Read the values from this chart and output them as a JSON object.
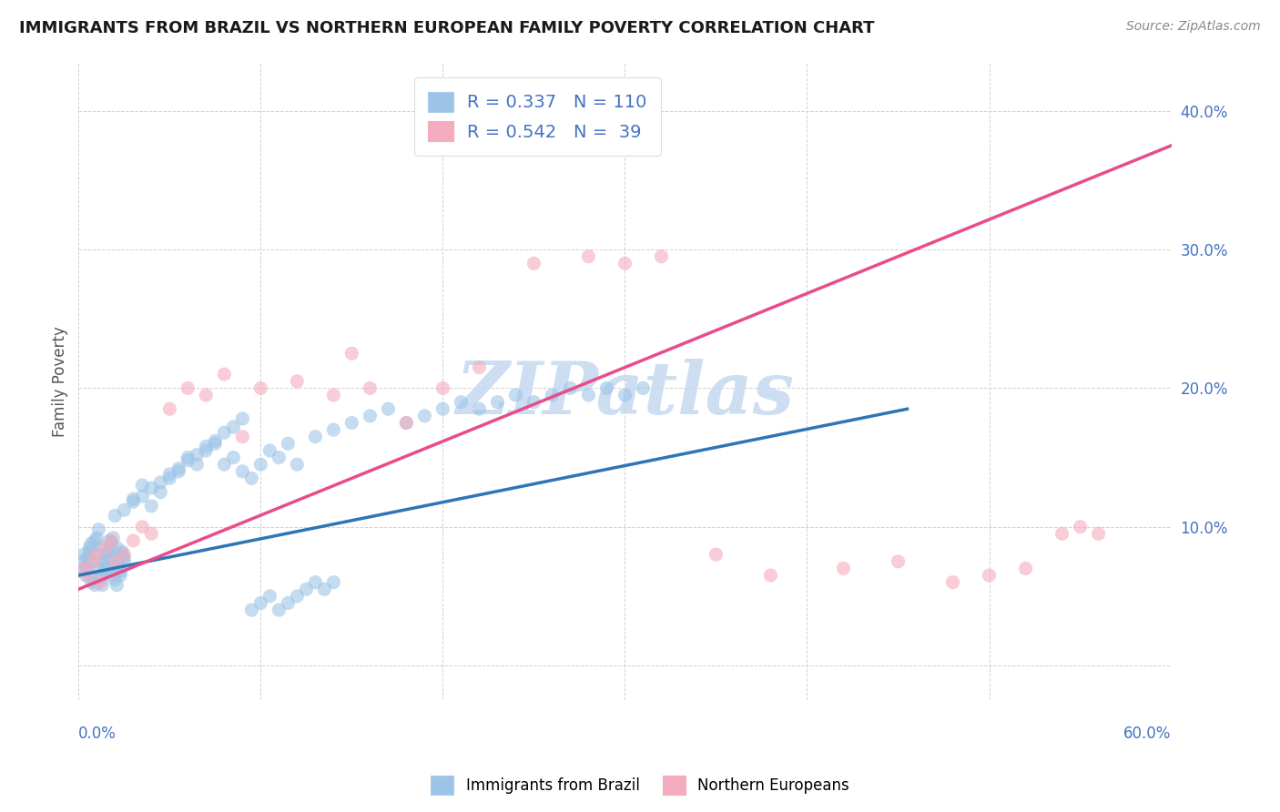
{
  "title": "IMMIGRANTS FROM BRAZIL VS NORTHERN EUROPEAN FAMILY POVERTY CORRELATION CHART",
  "source": "Source: ZipAtlas.com",
  "ylabel": "Family Poverty",
  "xlim": [
    0.0,
    0.6
  ],
  "ylim": [
    -0.025,
    0.435
  ],
  "r_brazil": 0.337,
  "n_brazil": 110,
  "r_northern": 0.542,
  "n_northern": 39,
  "color_brazil": "#9DC3E6",
  "color_northern": "#F4ACBE",
  "color_brazil_line": "#2E75B6",
  "color_northern_line": "#E84C8B",
  "legend_label_brazil": "Immigrants from Brazil",
  "legend_label_northern": "Northern Europeans",
  "watermark": "ZIPatlas",
  "watermark_color": "#C5D8F0",
  "brazil_line_x0": 0.0,
  "brazil_line_x1": 0.455,
  "brazil_line_y0": 0.065,
  "brazil_line_y1": 0.185,
  "northern_line_x0": 0.0,
  "northern_line_x1": 0.6,
  "northern_line_y0": 0.055,
  "northern_line_y1": 0.375,
  "brazil_scatter_x": [
    0.002,
    0.003,
    0.004,
    0.005,
    0.006,
    0.007,
    0.008,
    0.009,
    0.01,
    0.011,
    0.012,
    0.013,
    0.014,
    0.015,
    0.016,
    0.017,
    0.018,
    0.019,
    0.02,
    0.021,
    0.022,
    0.023,
    0.024,
    0.025,
    0.003,
    0.004,
    0.005,
    0.006,
    0.007,
    0.008,
    0.009,
    0.01,
    0.011,
    0.012,
    0.013,
    0.014,
    0.015,
    0.016,
    0.017,
    0.018,
    0.019,
    0.02,
    0.021,
    0.022,
    0.023,
    0.024,
    0.025,
    0.03,
    0.035,
    0.04,
    0.045,
    0.05,
    0.055,
    0.06,
    0.065,
    0.07,
    0.075,
    0.08,
    0.085,
    0.09,
    0.095,
    0.1,
    0.105,
    0.11,
    0.115,
    0.12,
    0.13,
    0.14,
    0.15,
    0.16,
    0.17,
    0.18,
    0.19,
    0.2,
    0.21,
    0.22,
    0.23,
    0.24,
    0.25,
    0.26,
    0.27,
    0.28,
    0.29,
    0.3,
    0.31,
    0.02,
    0.025,
    0.03,
    0.035,
    0.04,
    0.045,
    0.05,
    0.055,
    0.06,
    0.065,
    0.07,
    0.075,
    0.08,
    0.085,
    0.09,
    0.095,
    0.1,
    0.105,
    0.11,
    0.115,
    0.12,
    0.125,
    0.13,
    0.135,
    0.14
  ],
  "brazil_scatter_y": [
    0.075,
    0.08,
    0.065,
    0.07,
    0.085,
    0.06,
    0.075,
    0.09,
    0.08,
    0.07,
    0.065,
    0.085,
    0.075,
    0.08,
    0.07,
    0.09,
    0.065,
    0.075,
    0.08,
    0.085,
    0.07,
    0.065,
    0.08,
    0.075,
    0.068,
    0.072,
    0.078,
    0.082,
    0.088,
    0.062,
    0.058,
    0.092,
    0.098,
    0.062,
    0.058,
    0.072,
    0.068,
    0.082,
    0.078,
    0.088,
    0.092,
    0.062,
    0.058,
    0.072,
    0.068,
    0.082,
    0.078,
    0.12,
    0.13,
    0.115,
    0.125,
    0.135,
    0.14,
    0.15,
    0.145,
    0.155,
    0.16,
    0.145,
    0.15,
    0.14,
    0.135,
    0.145,
    0.155,
    0.15,
    0.16,
    0.145,
    0.165,
    0.17,
    0.175,
    0.18,
    0.185,
    0.175,
    0.18,
    0.185,
    0.19,
    0.185,
    0.19,
    0.195,
    0.19,
    0.195,
    0.2,
    0.195,
    0.2,
    0.195,
    0.2,
    0.108,
    0.112,
    0.118,
    0.122,
    0.128,
    0.132,
    0.138,
    0.142,
    0.148,
    0.152,
    0.158,
    0.162,
    0.168,
    0.172,
    0.178,
    0.04,
    0.045,
    0.05,
    0.04,
    0.045,
    0.05,
    0.055,
    0.06,
    0.055,
    0.06
  ],
  "northern_scatter_x": [
    0.003,
    0.005,
    0.008,
    0.01,
    0.012,
    0.015,
    0.018,
    0.02,
    0.025,
    0.03,
    0.035,
    0.04,
    0.05,
    0.06,
    0.07,
    0.08,
    0.09,
    0.1,
    0.12,
    0.14,
    0.15,
    0.16,
    0.18,
    0.2,
    0.22,
    0.25,
    0.28,
    0.3,
    0.32,
    0.35,
    0.38,
    0.42,
    0.45,
    0.48,
    0.5,
    0.52,
    0.54,
    0.55,
    0.56
  ],
  "northern_scatter_y": [
    0.07,
    0.065,
    0.075,
    0.08,
    0.06,
    0.085,
    0.09,
    0.075,
    0.08,
    0.09,
    0.1,
    0.095,
    0.185,
    0.2,
    0.195,
    0.21,
    0.165,
    0.2,
    0.205,
    0.195,
    0.225,
    0.2,
    0.175,
    0.2,
    0.215,
    0.29,
    0.295,
    0.29,
    0.295,
    0.08,
    0.065,
    0.07,
    0.075,
    0.06,
    0.065,
    0.07,
    0.095,
    0.1,
    0.095
  ]
}
